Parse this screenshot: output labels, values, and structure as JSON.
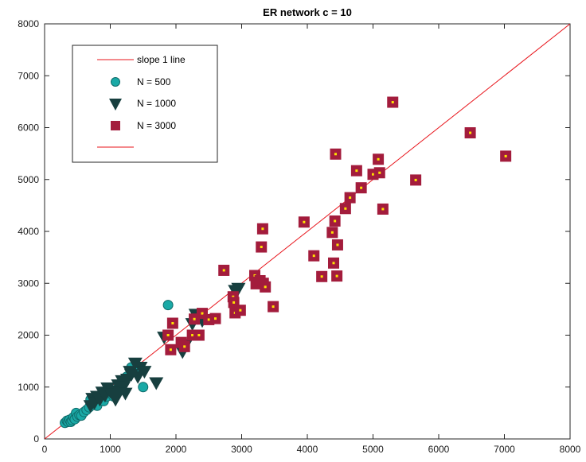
{
  "chart_data": {
    "type": "scatter",
    "title": "ER network c = 10",
    "xlabel": "",
    "ylabel": "",
    "xlim": [
      0,
      8000
    ],
    "ylim": [
      0,
      8000
    ],
    "xticks": [
      0,
      1000,
      2000,
      3000,
      4000,
      5000,
      6000,
      7000,
      8000
    ],
    "yticks": [
      0,
      1000,
      2000,
      3000,
      4000,
      5000,
      6000,
      7000,
      8000
    ],
    "grid": false,
    "legend_position": "top-left",
    "reference_line": {
      "name": "slope 1 line",
      "slope": 1,
      "color": "#e8141b"
    },
    "legend_extra_entry": {
      "name": "",
      "color": "#e8141b"
    },
    "series": [
      {
        "name": "N = 500",
        "marker": "circle",
        "color": "#1aa9a6",
        "points": [
          [
            310,
            310
          ],
          [
            340,
            350
          ],
          [
            360,
            330
          ],
          [
            380,
            370
          ],
          [
            400,
            330
          ],
          [
            420,
            360
          ],
          [
            440,
            420
          ],
          [
            460,
            380
          ],
          [
            480,
            500
          ],
          [
            500,
            430
          ],
          [
            530,
            460
          ],
          [
            560,
            450
          ],
          [
            600,
            520
          ],
          [
            640,
            560
          ],
          [
            680,
            610
          ],
          [
            700,
            760
          ],
          [
            720,
            680
          ],
          [
            760,
            720
          ],
          [
            800,
            640
          ],
          [
            850,
            780
          ],
          [
            900,
            730
          ],
          [
            950,
            820
          ],
          [
            1000,
            880
          ],
          [
            1050,
            820
          ],
          [
            1100,
            960
          ],
          [
            1180,
            1050
          ],
          [
            1250,
            1200
          ],
          [
            1320,
            1380
          ],
          [
            1400,
            1300
          ],
          [
            1500,
            1000
          ],
          [
            1880,
            2580
          ]
        ]
      },
      {
        "name": "N = 1000",
        "marker": "triangle-down",
        "color": "#173f3f",
        "points": [
          [
            700,
            640
          ],
          [
            730,
            780
          ],
          [
            760,
            700
          ],
          [
            800,
            820
          ],
          [
            840,
            760
          ],
          [
            880,
            900
          ],
          [
            920,
            840
          ],
          [
            960,
            980
          ],
          [
            1000,
            920
          ],
          [
            1040,
            860
          ],
          [
            1080,
            760
          ],
          [
            1120,
            1040
          ],
          [
            1140,
            900
          ],
          [
            1180,
            1120
          ],
          [
            1200,
            1000
          ],
          [
            1230,
            880
          ],
          [
            1260,
            1150
          ],
          [
            1300,
            1300
          ],
          [
            1320,
            1240
          ],
          [
            1380,
            1460
          ],
          [
            1420,
            1200
          ],
          [
            1460,
            1380
          ],
          [
            1520,
            1300
          ],
          [
            1700,
            1080
          ],
          [
            1820,
            1960
          ],
          [
            2100,
            1680
          ],
          [
            2150,
            1820
          ],
          [
            2250,
            2220
          ],
          [
            2300,
            2400
          ],
          [
            2400,
            2280
          ],
          [
            2900,
            2860
          ],
          [
            2950,
            2900
          ]
        ]
      },
      {
        "name": "N = 3000",
        "marker": "square",
        "color": "#a31c3c",
        "inner_color": "#ffe400",
        "points": [
          [
            1880,
            2000
          ],
          [
            1920,
            1720
          ],
          [
            1950,
            2230
          ],
          [
            2080,
            1860
          ],
          [
            2130,
            1780
          ],
          [
            2250,
            2000
          ],
          [
            2280,
            2310
          ],
          [
            2350,
            2000
          ],
          [
            2400,
            2420
          ],
          [
            2500,
            2300
          ],
          [
            2600,
            2320
          ],
          [
            2730,
            3250
          ],
          [
            2870,
            2740
          ],
          [
            2900,
            2430
          ],
          [
            2880,
            2630
          ],
          [
            2980,
            2480
          ],
          [
            3200,
            3150
          ],
          [
            3220,
            2990
          ],
          [
            3280,
            3050
          ],
          [
            3300,
            3700
          ],
          [
            3320,
            4050
          ],
          [
            3330,
            3000
          ],
          [
            3360,
            2930
          ],
          [
            3480,
            2550
          ],
          [
            3950,
            4180
          ],
          [
            4100,
            3530
          ],
          [
            4220,
            3130
          ],
          [
            4380,
            3980
          ],
          [
            4400,
            3390
          ],
          [
            4420,
            4200
          ],
          [
            4430,
            5490
          ],
          [
            4450,
            3140
          ],
          [
            4460,
            3740
          ],
          [
            4580,
            4440
          ],
          [
            4650,
            4650
          ],
          [
            4750,
            5170
          ],
          [
            4820,
            4840
          ],
          [
            5000,
            5100
          ],
          [
            5080,
            5390
          ],
          [
            5100,
            5130
          ],
          [
            5150,
            4430
          ],
          [
            5300,
            6490
          ],
          [
            5650,
            4990
          ],
          [
            6480,
            5900
          ],
          [
            7020,
            5450
          ]
        ]
      }
    ]
  }
}
